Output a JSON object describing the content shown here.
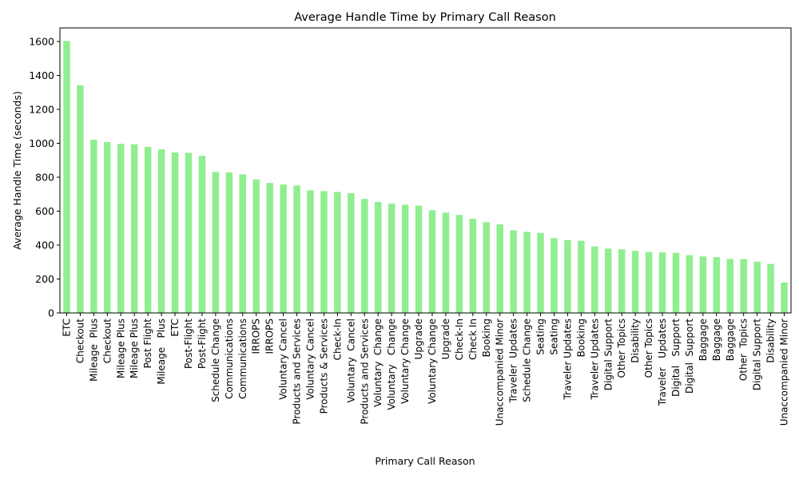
{
  "chart_data": {
    "type": "bar",
    "title": "Average Handle Time by Primary Call Reason",
    "xlabel": "Primary Call Reason",
    "ylabel": "Average Handle Time (seconds)",
    "ylim": [
      0,
      1680
    ],
    "yticks": [
      0,
      200,
      400,
      600,
      800,
      1000,
      1200,
      1400,
      1600
    ],
    "grid": false,
    "bar_color": "#90ee90",
    "categories": [
      "ETC",
      "Checkout",
      "Mileage  Plus",
      "Checkout",
      "Mileage Plus",
      "Mileage Plus",
      "Post Flight",
      "Mileage   Plus",
      "ETC",
      "Post-Flight",
      "Post-Flight",
      "Schedule Change",
      "Communications",
      "Communications",
      "IRROPS",
      "IRROPS",
      "Voluntary Cancel",
      "Products and Services",
      "Voluntary Cancel",
      "Products & Services",
      "Check-In",
      "Voluntary  Cancel",
      "Products and Services",
      "Voluntary  Change",
      "Voluntary   Change",
      "Voluntary Change",
      "Upgrade",
      "Voluntary Change",
      "Upgrade",
      "Check-In",
      "Check In",
      "Booking",
      "Unaccompanied Minor",
      "Traveler  Updates",
      "Schedule Change",
      "Seating",
      "Seating",
      "Traveler Updates",
      "Booking",
      "Traveler Updates",
      "Digital Support",
      "Other Topics",
      "Disability",
      "Other Topics",
      "Traveler   Updates",
      "Digital   Support",
      "Digital  Support",
      "Baggage",
      "Baggage",
      "Baggage",
      "Other  Topics",
      "Digital Support",
      "Disability",
      "Unaccompanied Minor"
    ],
    "values": [
      1603,
      1342,
      1021,
      1007,
      997,
      994,
      979,
      964,
      946,
      944,
      926,
      832,
      828,
      817,
      787,
      766,
      757,
      751,
      723,
      718,
      713,
      706,
      672,
      654,
      644,
      638,
      633,
      605,
      592,
      578,
      555,
      535,
      522,
      487,
      478,
      472,
      441,
      430,
      425,
      392,
      379,
      375,
      366,
      359,
      357,
      355,
      341,
      333,
      329,
      318,
      318,
      302,
      289,
      180
    ]
  }
}
